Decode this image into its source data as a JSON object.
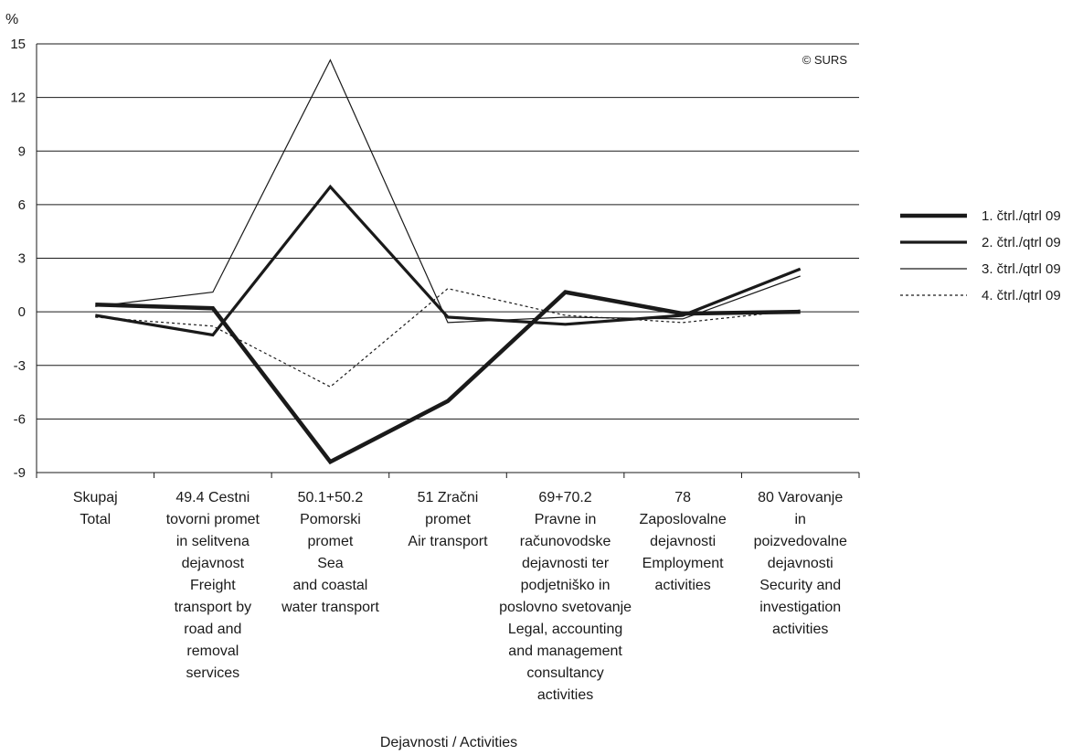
{
  "chart_data": {
    "type": "line",
    "y_unit_label": "%",
    "copyright": "© SURS",
    "xlabel": "Dejavnosti / Activities",
    "ylim": [
      -9,
      15
    ],
    "yticks": [
      15,
      12,
      9,
      6,
      3,
      0,
      -3,
      -6,
      -9
    ],
    "grid": true,
    "legend_position": "right",
    "categories": [
      [
        "Skupaj",
        "Total"
      ],
      [
        "49.4 Cestni",
        "tovorni promet",
        "in selitvena",
        "dejavnost",
        "Freight",
        "transport by",
        "road and",
        "removal",
        "services"
      ],
      [
        "50.1+50.2",
        "Pomorski",
        "promet",
        "Sea",
        "and coastal",
        "water transport"
      ],
      [
        "51 Zračni",
        "promet",
        "Air transport"
      ],
      [
        "69+70.2",
        "Pravne in",
        "računovodske",
        "dejavnosti ter",
        "podjetniško in",
        "poslovno svetovanje",
        "Legal, accounting",
        "and management",
        "consultancy",
        "activities"
      ],
      [
        "78",
        "Zaposlovalne",
        "dejavnosti",
        "Employment",
        "activities"
      ],
      [
        "80 Varovanje",
        "in",
        "poizvedovalne",
        "dejavnosti",
        "Security and",
        "investigation",
        "activities"
      ]
    ],
    "series": [
      {
        "name": "1. čtrl./qtrl 09",
        "values": [
          0.4,
          0.2,
          -8.4,
          -5.0,
          1.1,
          -0.1,
          0.0
        ],
        "color": "#1a1a1a",
        "style": "thick"
      },
      {
        "name": "2. čtrl./qtrl 09",
        "values": [
          -0.2,
          -1.3,
          7.0,
          -0.3,
          -0.7,
          -0.2,
          2.4
        ],
        "color": "#1a1a1a",
        "style": "medium"
      },
      {
        "name": "3. čtrl./qtrl 09",
        "values": [
          0.3,
          1.1,
          14.1,
          -0.6,
          -0.3,
          -0.4,
          2.0
        ],
        "color": "#1a1a1a",
        "style": "thin"
      },
      {
        "name": "4. čtrl./qtrl 09",
        "values": [
          -0.3,
          -0.8,
          -4.2,
          1.3,
          -0.2,
          -0.6,
          0.1
        ],
        "color": "#1a1a1a",
        "style": "dotted"
      }
    ]
  }
}
